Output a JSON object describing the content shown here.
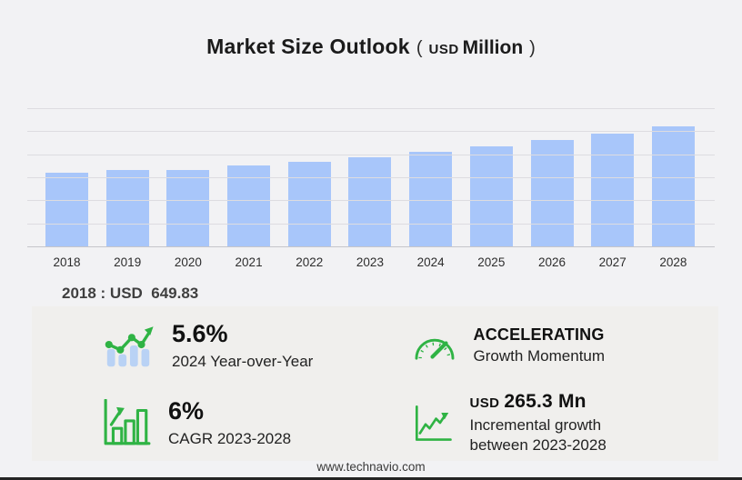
{
  "title": {
    "main": "Market Size Outlook",
    "paren_open": "(",
    "currency": "USD",
    "unit": "Million",
    "paren_close": ")"
  },
  "chart_data": {
    "type": "bar",
    "title": "Market Size Outlook (USD Million)",
    "categories": [
      "2018",
      "2019",
      "2020",
      "2021",
      "2022",
      "2023",
      "2024",
      "2025",
      "2026",
      "2027",
      "2028"
    ],
    "values": [
      649.83,
      675,
      668,
      707,
      739,
      784,
      828,
      880,
      933,
      989,
      1050
    ],
    "ylabel": "",
    "xlabel": "",
    "ylim": [
      0,
      1200
    ],
    "grid_step": 200,
    "grid": "horizontal",
    "legend_position": "none",
    "bar_color": "#a8c6fa"
  },
  "baseline_note": "2018 : USD  649.83",
  "stats": [
    {
      "icon": "yoy-bars-trend-icon",
      "value": "5.6%",
      "label": "2024 Year-over-Year"
    },
    {
      "icon": "gauge-icon",
      "value": "ACCELERATING",
      "label": "Growth Momentum"
    },
    {
      "icon": "bar-chart-growth-icon",
      "value": "6%",
      "label": "CAGR 2023-2028"
    },
    {
      "icon": "line-chart-growth-icon",
      "value_currency": "USD",
      "value_amount": "265.3 Mn",
      "label_line1": "Incremental growth",
      "label_line2": "between 2023-2028"
    }
  ],
  "footer": {
    "website": "www.technavio.com"
  },
  "colors": {
    "page_bg": "#f2f2f4",
    "panel_bg": "#f0efed",
    "bar_color": "#a8c6fa",
    "accent_green": "#2fb344",
    "grid_color": "#dddce0",
    "axis_color": "#c6c5ca"
  }
}
